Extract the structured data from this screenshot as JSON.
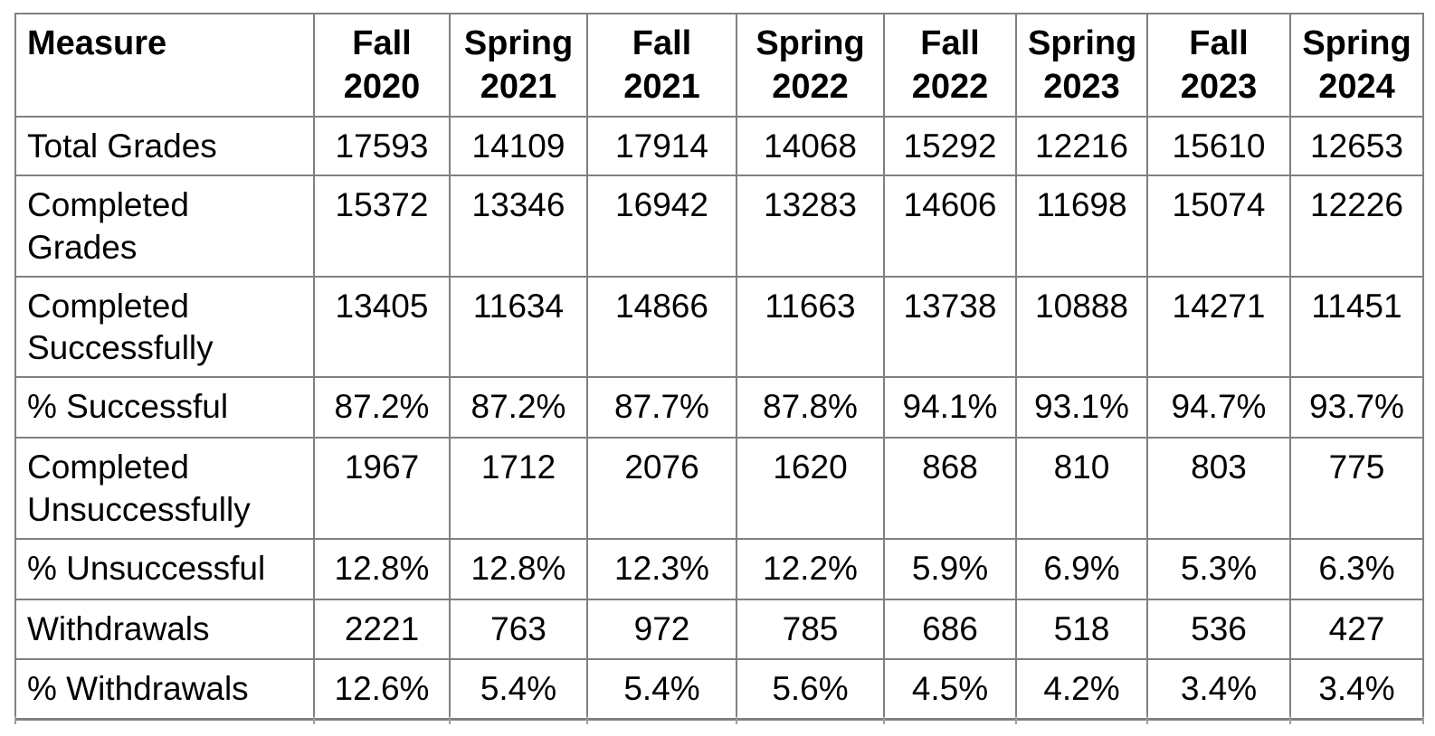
{
  "table": {
    "columns": [
      "Measure",
      "Fall 2020",
      "Spring 2021",
      "Fall 2021",
      "Spring 2022",
      "Fall 2022",
      "Spring 2023",
      "Fall 2023",
      "Spring 2024"
    ],
    "rows": [
      {
        "measure": "Total Grades",
        "values": [
          "17593",
          "14109",
          "17914",
          "14068",
          "15292",
          "12216",
          "15610",
          "12653"
        ]
      },
      {
        "measure": "Completed Grades",
        "values": [
          "15372",
          "13346",
          "16942",
          "13283",
          "14606",
          "11698",
          "15074",
          "12226"
        ]
      },
      {
        "measure": "Completed Successfully",
        "values": [
          "13405",
          "11634",
          "14866",
          "11663",
          "13738",
          "10888",
          "14271",
          "11451"
        ]
      },
      {
        "measure": "% Successful",
        "values": [
          "87.2%",
          "87.2%",
          "87.7%",
          "87.8%",
          "94.1%",
          "93.1%",
          "94.7%",
          "93.7%"
        ]
      },
      {
        "measure": "Completed Unsuccessfully",
        "values": [
          "1967",
          "1712",
          "2076",
          "1620",
          "868",
          "810",
          "803",
          "775"
        ]
      },
      {
        "measure": "% Unsuccessful",
        "values": [
          "12.8%",
          "12.8%",
          "12.3%",
          "12.2%",
          "5.9%",
          "6.9%",
          "5.3%",
          "6.3%"
        ]
      },
      {
        "measure": "Withdrawals",
        "values": [
          "2221",
          "763",
          "972",
          "785",
          "686",
          "518",
          "536",
          "427"
        ]
      },
      {
        "measure": "% Withdrawals",
        "values": [
          "12.6%",
          "5.4%",
          "5.4%",
          "5.6%",
          "4.5%",
          "4.2%",
          "3.4%",
          "3.4%"
        ]
      }
    ]
  },
  "colors": {
    "border": "#808080",
    "text": "#000000",
    "background": "#ffffff"
  }
}
